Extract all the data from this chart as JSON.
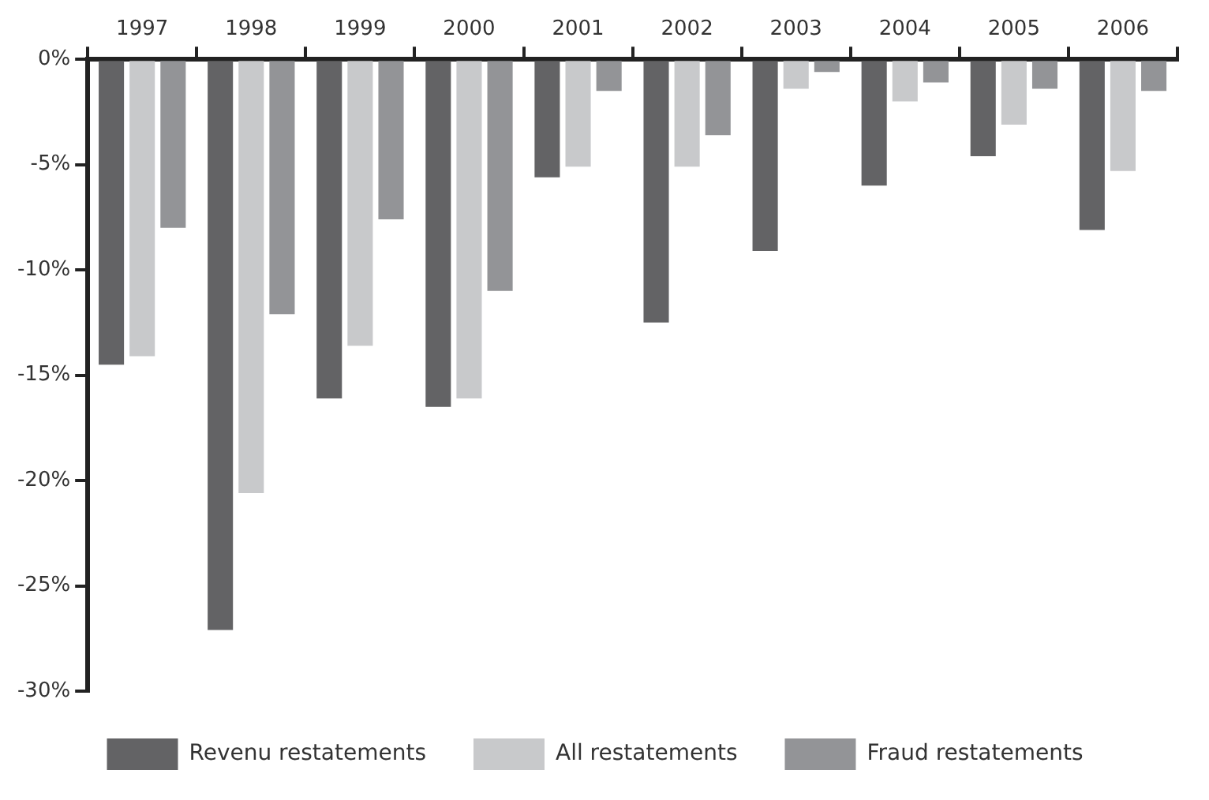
{
  "chart_data": {
    "type": "bar",
    "categories": [
      "1997",
      "1998",
      "1999",
      "2000",
      "2001",
      "2002",
      "2003",
      "2004",
      "2005",
      "2006"
    ],
    "series": [
      {
        "name": "Revenu restatements",
        "color": "#636365",
        "values": [
          -14.5,
          -27.1,
          -16.1,
          -16.5,
          -5.6,
          -12.5,
          -9.1,
          -6.0,
          -4.6,
          -8.1
        ]
      },
      {
        "name": "All restatements",
        "color": "#c8c9cb",
        "values": [
          -14.1,
          -20.6,
          -13.6,
          -16.1,
          -5.1,
          -5.1,
          -1.4,
          -2.0,
          -3.1,
          -5.3
        ]
      },
      {
        "name": "Fraud restatements",
        "color": "#939497",
        "values": [
          -8.0,
          -12.1,
          -7.6,
          -11.0,
          -1.5,
          -3.6,
          -0.6,
          -1.1,
          -1.4,
          -1.5
        ]
      }
    ],
    "ylim": [
      -30,
      0
    ],
    "yticks": [
      {
        "value": 0,
        "label": "0%"
      },
      {
        "value": -5,
        "label": "-5%"
      },
      {
        "value": -10,
        "label": "-10%"
      },
      {
        "value": -15,
        "label": "-15%"
      },
      {
        "value": -20,
        "label": "-20%"
      },
      {
        "value": -25,
        "label": "-25%"
      },
      {
        "value": -30,
        "label": "-30%"
      }
    ],
    "grid": false,
    "legend": "bottom"
  }
}
